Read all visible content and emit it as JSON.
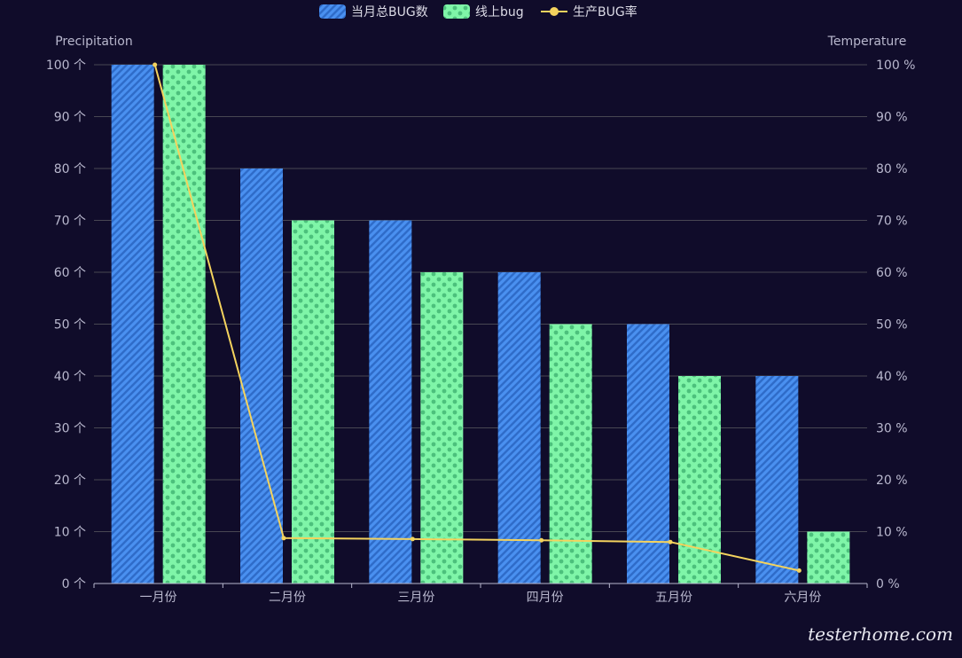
{
  "chart_data": {
    "type": "bar",
    "categories": [
      "一月份",
      "二月份",
      "三月份",
      "四月份",
      "五月份",
      "六月份"
    ],
    "series": [
      {
        "name": "当月总BUG数",
        "type": "bar",
        "axis": "left",
        "color": "#4a90f0",
        "pattern": "diagonal-stripes",
        "values": [
          100,
          80,
          70,
          60,
          50,
          40
        ]
      },
      {
        "name": "线上bug",
        "type": "bar",
        "axis": "left",
        "color": "#7ff5a8",
        "pattern": "dots",
        "values": [
          100,
          70,
          60,
          50,
          40,
          10
        ]
      },
      {
        "name": "生产BUG率",
        "type": "line",
        "axis": "right",
        "color": "#f4d35e",
        "values": [
          100,
          8.75,
          8.57,
          8.33,
          8,
          2.5
        ]
      }
    ],
    "y_left": {
      "name": "Precipitation",
      "min": 0,
      "max": 100,
      "interval": 10,
      "unit": "个"
    },
    "y_right": {
      "name": "Temperature",
      "min": 0,
      "max": 100,
      "interval": 10,
      "unit": "%"
    },
    "grid": true,
    "legend_position": "top-center"
  },
  "watermark": "testerhome.com"
}
